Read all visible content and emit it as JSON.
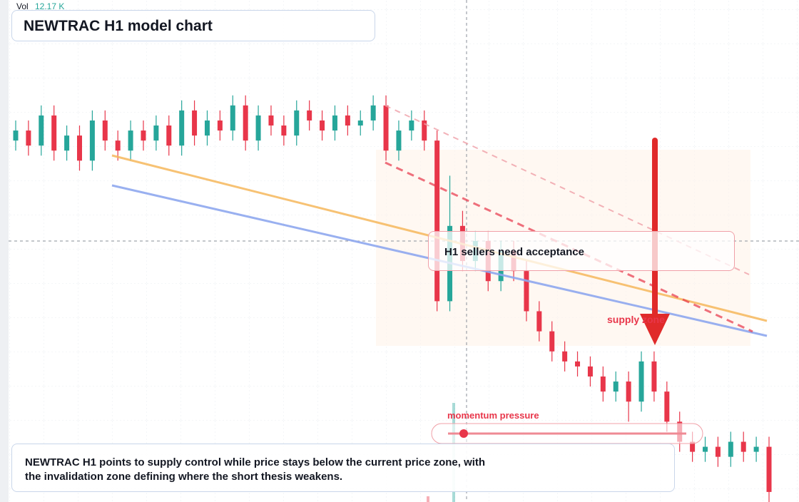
{
  "chart_data": {
    "type": "candlestick",
    "title": "NEWTRAC H1 model chart",
    "volume_label": "Vol",
    "volume_value": "12.17 K",
    "annotations": [
      "H1 sellers need acceptance",
      "supply zone",
      "momentum pressure"
    ],
    "caption": "NEWTRAC H1 points to supply control while price stays below the current price zone, with the invalidation zone defining where the short thesis weakens.",
    "up_color": "#26a69a",
    "down_color": "#e8364a",
    "ylim": [
      0,
      100
    ],
    "open": [
      72,
      74,
      71,
      77,
      70,
      73,
      68,
      76,
      72,
      70,
      74,
      72,
      75,
      71,
      78,
      73,
      76,
      74,
      79,
      72,
      77,
      75,
      73,
      78,
      76,
      74,
      77,
      75,
      76,
      79,
      70,
      74,
      76,
      72,
      40,
      55,
      48,
      52,
      44,
      50,
      46,
      38,
      34,
      30,
      28,
      27,
      25,
      22,
      24,
      20,
      28,
      22,
      16,
      12,
      10,
      11,
      9,
      12,
      10,
      11
    ],
    "high": [
      76,
      76,
      79,
      79,
      75,
      75,
      78,
      78,
      74,
      76,
      76,
      77,
      77,
      80,
      80,
      78,
      78,
      81,
      81,
      79,
      79,
      77,
      80,
      80,
      78,
      79,
      79,
      78,
      81,
      81,
      76,
      78,
      78,
      74,
      65,
      58,
      54,
      54,
      52,
      52,
      48,
      40,
      36,
      32,
      30,
      29,
      27,
      26,
      26,
      30,
      30,
      24,
      18,
      14,
      13,
      13,
      14,
      14,
      13,
      13
    ],
    "low": [
      70,
      69,
      69,
      68,
      68,
      66,
      66,
      70,
      68,
      68,
      70,
      70,
      69,
      69,
      71,
      71,
      72,
      72,
      70,
      70,
      73,
      71,
      71,
      74,
      72,
      72,
      73,
      73,
      74,
      68,
      68,
      72,
      70,
      38,
      38,
      46,
      46,
      42,
      42,
      44,
      36,
      32,
      28,
      26,
      25,
      23,
      20,
      20,
      16,
      18,
      20,
      14,
      10,
      8,
      8,
      7,
      7,
      8,
      8,
      0
    ],
    "close": [
      74,
      71,
      77,
      70,
      73,
      68,
      76,
      72,
      70,
      74,
      72,
      75,
      71,
      78,
      73,
      76,
      74,
      79,
      72,
      77,
      75,
      73,
      78,
      76,
      74,
      77,
      75,
      76,
      79,
      70,
      74,
      76,
      72,
      40,
      55,
      48,
      52,
      44,
      50,
      46,
      38,
      34,
      30,
      28,
      27,
      25,
      22,
      24,
      20,
      28,
      22,
      16,
      12,
      10,
      11,
      9,
      12,
      10,
      11,
      2
    ]
  }
}
